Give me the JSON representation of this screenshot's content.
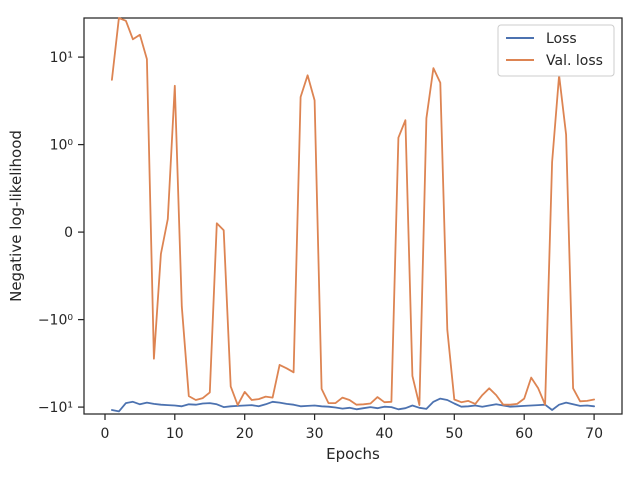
{
  "chart_data": {
    "type": "line",
    "xlabel": "Epochs",
    "ylabel": "Negative log-likelihood",
    "yscale": "symlog",
    "xlim": [
      -3,
      74
    ],
    "ylim": [
      -12,
      28
    ],
    "x_ticks": [
      0,
      10,
      20,
      30,
      40,
      50,
      60,
      70
    ],
    "y_ticks": [
      {
        "value": 10,
        "label": "10¹"
      },
      {
        "value": 1,
        "label": "10⁰"
      },
      {
        "value": 0,
        "label": "0"
      },
      {
        "value": -1,
        "label": "−10⁰"
      },
      {
        "value": -10,
        "label": "−10¹"
      }
    ],
    "grid": false,
    "legend_position": "top-right",
    "x": [
      1,
      2,
      3,
      4,
      5,
      6,
      7,
      8,
      9,
      10,
      11,
      12,
      13,
      14,
      15,
      16,
      17,
      18,
      19,
      20,
      21,
      22,
      23,
      24,
      25,
      26,
      27,
      28,
      29,
      30,
      31,
      32,
      33,
      34,
      35,
      36,
      37,
      38,
      39,
      40,
      41,
      42,
      43,
      44,
      45,
      46,
      47,
      48,
      49,
      50,
      51,
      52,
      53,
      54,
      55,
      56,
      57,
      58,
      59,
      60,
      61,
      62,
      63,
      64,
      65,
      66,
      67,
      68,
      69,
      70
    ],
    "series": [
      {
        "name": "Loss",
        "color": "#4c72b0",
        "values": [
          -10.8,
          -11.2,
          -9.0,
          -8.7,
          -9.3,
          -8.9,
          -9.2,
          -9.4,
          -9.5,
          -9.6,
          -9.8,
          -9.3,
          -9.4,
          -9.1,
          -9.0,
          -9.3,
          -10.0,
          -9.8,
          -9.7,
          -9.6,
          -9.5,
          -9.8,
          -9.3,
          -8.7,
          -8.9,
          -9.2,
          -9.4,
          -9.8,
          -9.7,
          -9.6,
          -9.8,
          -9.9,
          -10.1,
          -10.4,
          -10.2,
          -10.6,
          -10.3,
          -10.0,
          -10.3,
          -9.9,
          -10.0,
          -10.6,
          -10.3,
          -9.6,
          -10.2,
          -10.5,
          -8.7,
          -8.0,
          -8.3,
          -9.1,
          -9.9,
          -9.8,
          -9.6,
          -9.9,
          -9.6,
          -9.3,
          -9.6,
          -9.9,
          -9.8,
          -9.7,
          -9.6,
          -9.5,
          -9.4,
          -10.8,
          -9.4,
          -8.9,
          -9.3,
          -9.7,
          -9.6,
          -9.8
        ]
      },
      {
        "name": "Val. loss",
        "color": "#dd8452",
        "values": [
          5.5,
          28.0,
          26.0,
          16.0,
          18.0,
          9.5,
          -2.8,
          -0.25,
          0.15,
          4.7,
          -0.85,
          -7.5,
          -8.3,
          -7.9,
          -6.8,
          0.1,
          0.02,
          -5.8,
          -9.5,
          -6.7,
          -8.3,
          -8.1,
          -7.6,
          -7.8,
          -3.3,
          -3.6,
          -4.0,
          3.5,
          6.2,
          3.2,
          -6.2,
          -9.0,
          -9.0,
          -7.8,
          -8.3,
          -9.4,
          -9.3,
          -9.1,
          -7.7,
          -8.8,
          -8.7,
          1.2,
          1.9,
          -4.4,
          -9.5,
          2.0,
          7.5,
          5.1,
          -1.3,
          -8.2,
          -8.8,
          -8.5,
          -9.2,
          -7.3,
          -6.1,
          -7.3,
          -9.4,
          -9.4,
          -9.2,
          -8.0,
          -4.6,
          -6.1,
          -9.4,
          0.8,
          6.2,
          1.3,
          -6.1,
          -8.6,
          -8.5,
          -8.2
        ]
      }
    ]
  }
}
